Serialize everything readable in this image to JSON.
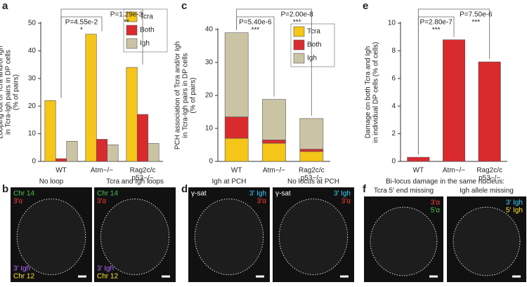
{
  "chart_data": [
    {
      "type": "bar",
      "mode": "grouped",
      "panel": "a",
      "y_label": [
        "Looping out of Tcra and/or Igh",
        "in Tcra-Igh pairs in DP cells",
        "(% of pairs)"
      ],
      "categories": [
        [
          "WT"
        ],
        [
          "Atm−/−"
        ],
        [
          "Rag2c/c",
          "p53−/−"
        ]
      ],
      "series": [
        {
          "name": "Tcra",
          "color": "#f5c518",
          "values": [
            22,
            46,
            34
          ]
        },
        {
          "name": "Both",
          "color": "#d92b2e",
          "values": [
            1,
            8,
            17
          ]
        },
        {
          "name": "Igh",
          "color": "#cbc4a4",
          "values": [
            7.3,
            6,
            6.5
          ]
        }
      ],
      "ylim": [
        0,
        50
      ],
      "yticks": [
        0,
        10,
        20,
        30,
        40,
        50
      ],
      "legend": "top-right",
      "comparisons": [
        {
          "label": "P=4.55e-2",
          "stars": "*"
        },
        {
          "label": "P=1.29e-3",
          "stars": "**"
        }
      ]
    },
    {
      "type": "bar",
      "mode": "stacked",
      "panel": "c",
      "y_label": [
        "PCH association of Tcra and/or Igh",
        "in Tcra-Igh pairs in DP cells",
        "(% of pairs)"
      ],
      "categories": [
        [
          "WT"
        ],
        [
          "Atm−/−"
        ],
        [
          "Rag2c/c",
          "p53−/−"
        ]
      ],
      "series": [
        {
          "name": "Tcra",
          "color": "#f5c518",
          "values": [
            7,
            5.5,
            3
          ]
        },
        {
          "name": "Both",
          "color": "#d92b2e",
          "values": [
            6.5,
            1,
            0.7
          ]
        },
        {
          "name": "Igh",
          "color": "#cbc4a4",
          "values": [
            25.5,
            12.3,
            9.3
          ]
        }
      ],
      "ylim": [
        0,
        40
      ],
      "yticks": [
        0,
        10,
        20,
        30,
        40
      ],
      "legend": "top-right",
      "comparisons": [
        {
          "label": "P=5.40e-6",
          "stars": "***"
        },
        {
          "label": "P=2.00e-8",
          "stars": "***"
        }
      ]
    },
    {
      "type": "bar",
      "mode": "single",
      "panel": "e",
      "y_label": [
        "Damage on both Tcra and Igh",
        "in individual DP cells (% of cells)"
      ],
      "categories": [
        [
          "WT"
        ],
        [
          "Atm−/−"
        ],
        [
          "Rag2c/c",
          "p53−/−"
        ]
      ],
      "values": [
        0.3,
        8.8,
        7.2
      ],
      "color": "#d92b2e",
      "ylim": [
        0,
        10
      ],
      "yticks": [
        0,
        2,
        4,
        6,
        8,
        10
      ],
      "comparisons": [
        {
          "label": "P=2.80e-7",
          "stars": "***"
        },
        {
          "label": "P=7.50e-6",
          "stars": "***"
        }
      ]
    }
  ],
  "image_panels": [
    {
      "letter": "b",
      "images": [
        {
          "title": "No loop",
          "labels": [
            {
              "text": "Chr 14",
              "color": "#4cc24c",
              "corner": "top-left"
            },
            {
              "text": "3′α",
              "color": "#ff3b3b",
              "corner": "top-left"
            },
            {
              "text": "3′ Igh",
              "color": "#b36bff",
              "corner": "bottom-left"
            },
            {
              "text": "Chr 12",
              "color": "#ffe23a",
              "corner": "bottom-left"
            }
          ]
        },
        {
          "title": "Tcra and Igh loops",
          "labels": [
            {
              "text": "Chr 14",
              "color": "#4cc24c",
              "corner": "top-left"
            },
            {
              "text": "3′α",
              "color": "#ff3b3b",
              "corner": "top-left"
            },
            {
              "text": "3′ Igh",
              "color": "#b36bff",
              "corner": "bottom-left"
            },
            {
              "text": "Chr 12",
              "color": "#ffe23a",
              "corner": "bottom-left"
            }
          ]
        }
      ]
    },
    {
      "letter": "d",
      "images": [
        {
          "title": "Igh at PCH",
          "labels": [
            {
              "text": "γ-sat",
              "color": "#ffffff",
              "corner": "top-left"
            },
            {
              "text": "3′ Igh",
              "color": "#3ad0ff",
              "corner": "top-right"
            },
            {
              "text": "3′α",
              "color": "#ff3b3b",
              "corner": "top-right"
            }
          ]
        },
        {
          "title": "No locus at PCH",
          "labels": [
            {
              "text": "γ-sat",
              "color": "#ffffff",
              "corner": "top-left"
            },
            {
              "text": "3′ Igh",
              "color": "#3ad0ff",
              "corner": "top-right"
            },
            {
              "text": "3′α",
              "color": "#ff3b3b",
              "corner": "top-right"
            }
          ]
        }
      ]
    },
    {
      "letter": "f",
      "header": "Bi-locus damage in the same nucleus:",
      "images": [
        {
          "title": "Tcra 5′ end missing",
          "labels": [
            {
              "text": "3′α",
              "color": "#ff3b3b",
              "corner": "top-right"
            },
            {
              "text": "5′α",
              "color": "#4cc24c",
              "corner": "top-right"
            }
          ]
        },
        {
          "title": "Igh allele missing",
          "labels": [
            {
              "text": "3′ Igh",
              "color": "#3ad0ff",
              "corner": "top-right"
            },
            {
              "text": "5′ Igh",
              "color": "#ffe23a",
              "corner": "top-right"
            }
          ]
        }
      ]
    }
  ]
}
